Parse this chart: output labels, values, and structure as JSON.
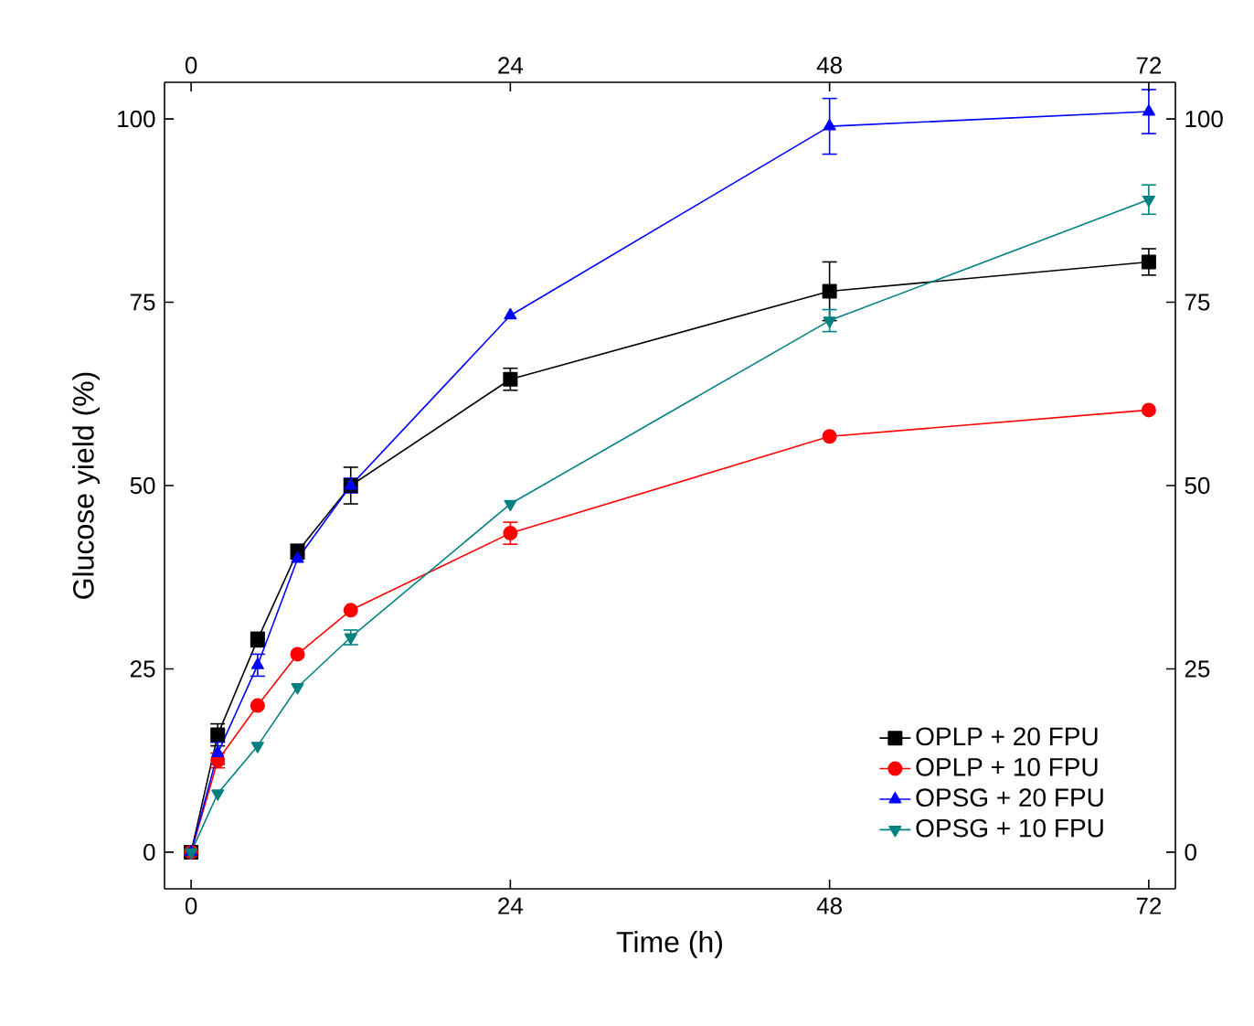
{
  "chart_data": {
    "type": "line",
    "xlabel": "Time (h)",
    "ylabel": "Glucose yield (%)",
    "x": [
      0,
      2,
      5,
      8,
      12,
      24,
      48,
      72
    ],
    "xlim": [
      -2,
      74
    ],
    "xticks": [
      0,
      24,
      48,
      72
    ],
    "x2lim": [
      -2,
      74
    ],
    "x2ticks": [
      0,
      24,
      48,
      72
    ],
    "ylim": [
      -5,
      105
    ],
    "yticks": [
      0,
      25,
      50,
      75,
      100
    ],
    "y2lim": [
      -5,
      105
    ],
    "y2ticks": [
      0,
      25,
      50,
      75,
      100
    ],
    "legend": "bottom right",
    "grid": false,
    "line_style": "solid",
    "series": [
      {
        "name": "OPLP + 20 FPU",
        "color": "#000000",
        "marker": "square",
        "values": [
          0,
          16,
          29,
          41,
          50,
          64.5,
          76.5,
          80.5
        ],
        "errors": [
          null,
          1.5,
          1,
          1,
          2.5,
          1.5,
          4,
          1.8
        ]
      },
      {
        "name": "OPLP + 10 FPU",
        "color": "#ff0000",
        "marker": "circle",
        "values": [
          0,
          12.5,
          20,
          27,
          33,
          43.5,
          56.7,
          60.3
        ],
        "errors": [
          null,
          1,
          null,
          null,
          null,
          1.5,
          null,
          null
        ]
      },
      {
        "name": "OPSG + 20 FPU",
        "color": "#0000ff",
        "marker": "triangle",
        "values": [
          0,
          13.5,
          25.5,
          40,
          50,
          73.2,
          99,
          101
        ],
        "errors": [
          null,
          1.5,
          1.5,
          null,
          1,
          null,
          3.8,
          3
        ]
      },
      {
        "name": "OPSG + 10 FPU",
        "color": "#008080",
        "marker": "triangle-down",
        "values": [
          0,
          8,
          14.5,
          22.5,
          29.3,
          47.5,
          72.5,
          89
        ],
        "errors": [
          null,
          null,
          null,
          null,
          1,
          null,
          1.5,
          2
        ]
      }
    ]
  }
}
